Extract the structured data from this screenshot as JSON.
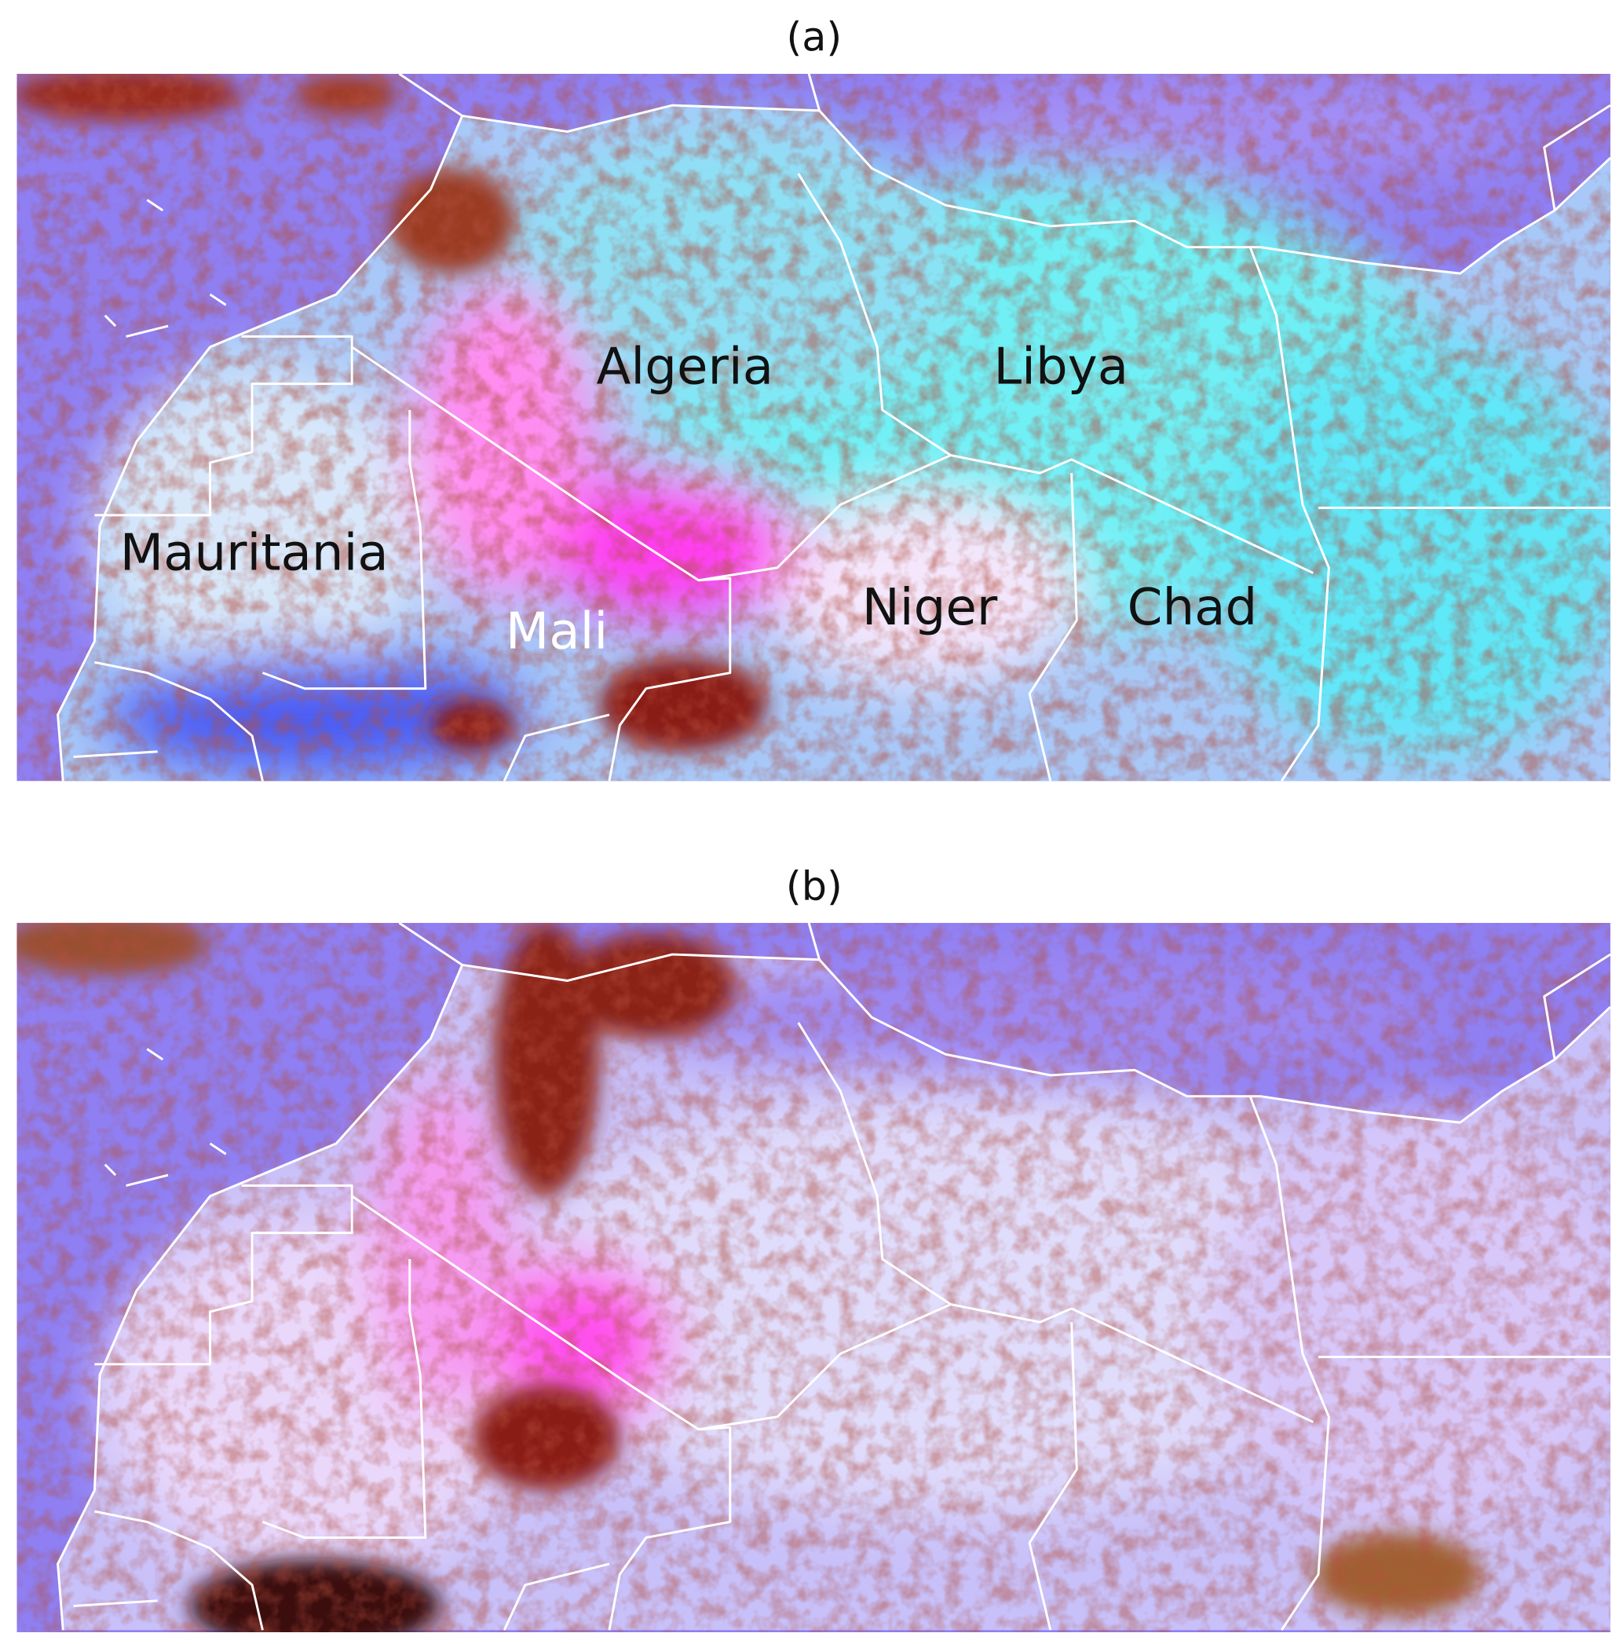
{
  "panels": [
    {
      "label": "(a)",
      "countries": [
        "Algeria",
        "Libya",
        "Mauritania",
        "Mali",
        "Niger",
        "Chad"
      ]
    },
    {
      "label": "(b)"
    }
  ]
}
